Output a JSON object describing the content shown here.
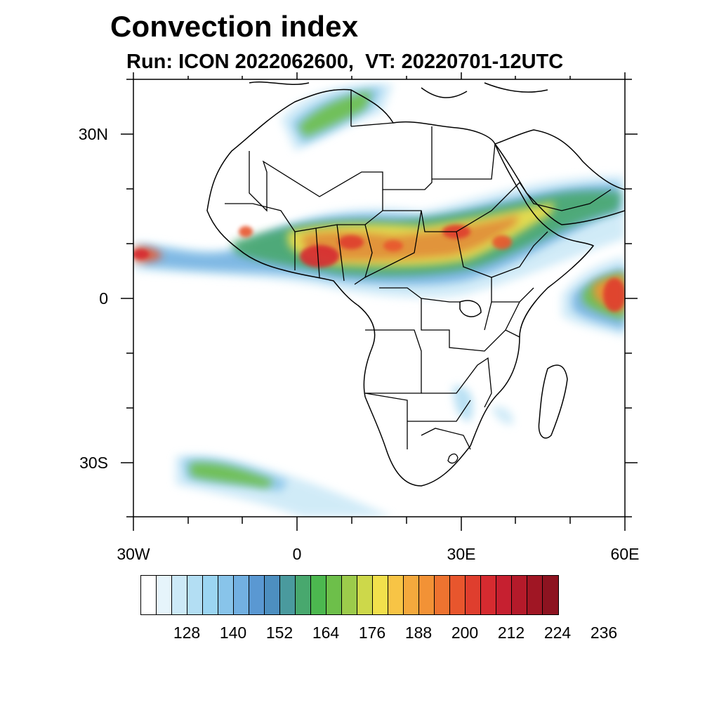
{
  "title": "Convection index",
  "subtitle": "Run: ICON 2022062600,  VT: 20220701-12UTC",
  "map": {
    "region": "Africa",
    "lon_range": [
      -30,
      60
    ],
    "lat_range": [
      -40,
      40
    ],
    "lat_labels": [
      "30N",
      "0",
      "30S"
    ],
    "lon_labels": [
      "30W",
      "0",
      "30E",
      "60E"
    ],
    "coastline_color": "#000000",
    "background": "#ffffff"
  },
  "colorbar": {
    "labels": [
      "128",
      "140",
      "152",
      "164",
      "176",
      "188",
      "200",
      "212",
      "224",
      "236"
    ],
    "colors": [
      "#ffffff",
      "#e6f4fb",
      "#cce9f7",
      "#b3def3",
      "#9bd5f2",
      "#88c4ea",
      "#72b0e1",
      "#5a98d2",
      "#4d8fc0",
      "#4a9a9e",
      "#48a86e",
      "#4cb84f",
      "#6dbf4a",
      "#9ccb4b",
      "#cdd84a",
      "#f2e04c",
      "#f7c445",
      "#f4a93d",
      "#f29236",
      "#ee7330",
      "#e8562d",
      "#df3e2e",
      "#d62b30",
      "#c62030",
      "#b41a2a",
      "#a01624",
      "#8d1320"
    ]
  }
}
